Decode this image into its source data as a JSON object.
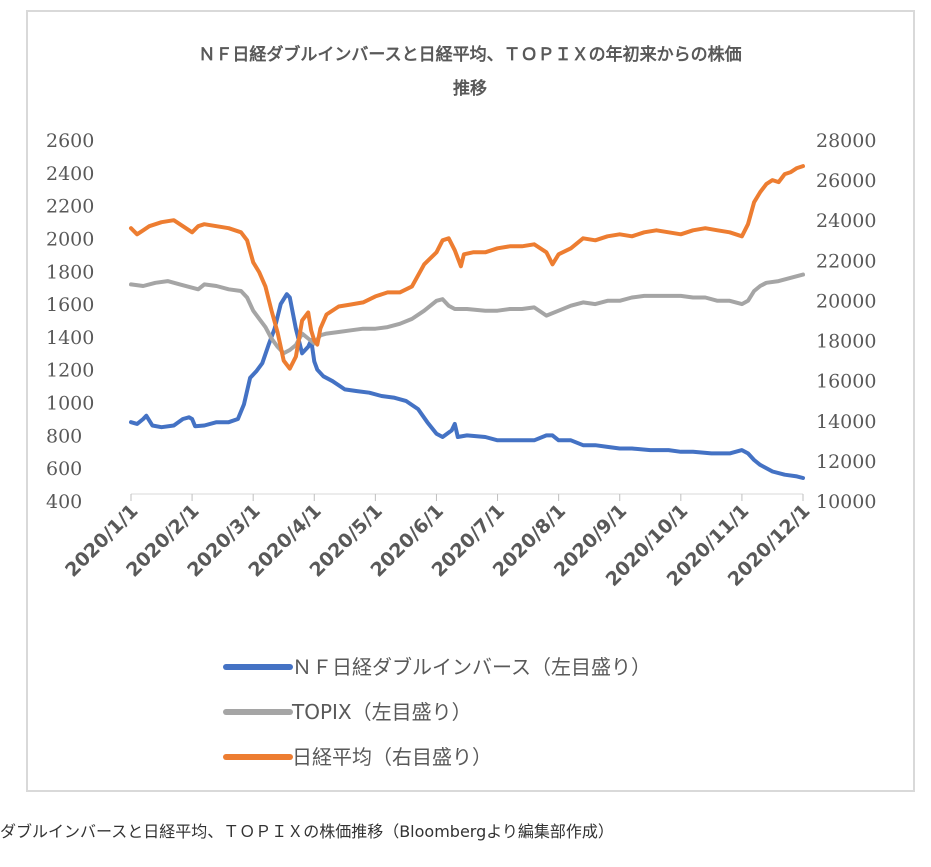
{
  "caption": "ダブルインバースと日経平均、ＴＯＰＩＸの株価推移（Bloombergより編集部作成）",
  "chart_data": {
    "type": "line",
    "title_lines": [
      "ＮＦ日経ダブルインバースと日経平均、ＴＯＰＩＸの年初来からの株価",
      "推移"
    ],
    "x_categories": [
      "2020/1/1",
      "2020/2/1",
      "2020/3/1",
      "2020/4/1",
      "2020/5/1",
      "2020/6/1",
      "2020/7/1",
      "2020/8/1",
      "2020/9/1",
      "2020/10/1",
      "2020/11/1",
      "2020/12/1"
    ],
    "y_left": {
      "min": 400,
      "max": 2600,
      "ticks": [
        "2600",
        "2400",
        "2200",
        "2000",
        "1800",
        "1600",
        "1400",
        "1200",
        "1000",
        "800",
        "600",
        "400"
      ]
    },
    "y_right": {
      "min": 10000,
      "max": 28000,
      "ticks": [
        "28000",
        "26000",
        "24000",
        "22000",
        "20000",
        "18000",
        "16000",
        "14000",
        "12000",
        "10000"
      ]
    },
    "grid": false,
    "legend_position": "bottom",
    "series": [
      {
        "name": "ＮＦ日経ダブルインバース（左目盛り）",
        "axis": "left",
        "color": "#4472c4",
        "points": [
          [
            0,
            880
          ],
          [
            0.1,
            870
          ],
          [
            0.2,
            900
          ],
          [
            0.25,
            920
          ],
          [
            0.35,
            860
          ],
          [
            0.5,
            850
          ],
          [
            0.7,
            860
          ],
          [
            0.85,
            900
          ],
          [
            0.95,
            910
          ],
          [
            1.0,
            900
          ],
          [
            1.05,
            855
          ],
          [
            1.2,
            860
          ],
          [
            1.4,
            880
          ],
          [
            1.6,
            880
          ],
          [
            1.75,
            900
          ],
          [
            1.85,
            990
          ],
          [
            1.95,
            1150
          ],
          [
            2.05,
            1190
          ],
          [
            2.15,
            1240
          ],
          [
            2.25,
            1350
          ],
          [
            2.35,
            1450
          ],
          [
            2.45,
            1600
          ],
          [
            2.55,
            1660
          ],
          [
            2.6,
            1640
          ],
          [
            2.7,
            1450
          ],
          [
            2.8,
            1300
          ],
          [
            2.9,
            1340
          ],
          [
            2.95,
            1380
          ],
          [
            3.0,
            1250
          ],
          [
            3.05,
            1200
          ],
          [
            3.15,
            1160
          ],
          [
            3.3,
            1130
          ],
          [
            3.5,
            1080
          ],
          [
            3.7,
            1070
          ],
          [
            3.9,
            1060
          ],
          [
            4.1,
            1040
          ],
          [
            4.3,
            1030
          ],
          [
            4.5,
            1010
          ],
          [
            4.7,
            960
          ],
          [
            4.85,
            880
          ],
          [
            5.0,
            810
          ],
          [
            5.1,
            790
          ],
          [
            5.25,
            830
          ],
          [
            5.3,
            870
          ],
          [
            5.35,
            790
          ],
          [
            5.5,
            800
          ],
          [
            5.8,
            790
          ],
          [
            6.0,
            770
          ],
          [
            6.2,
            770
          ],
          [
            6.4,
            770
          ],
          [
            6.6,
            770
          ],
          [
            6.8,
            800
          ],
          [
            6.9,
            800
          ],
          [
            7.0,
            770
          ],
          [
            7.2,
            770
          ],
          [
            7.4,
            740
          ],
          [
            7.6,
            740
          ],
          [
            7.8,
            730
          ],
          [
            8.0,
            720
          ],
          [
            8.2,
            720
          ],
          [
            8.5,
            710
          ],
          [
            8.8,
            710
          ],
          [
            9.0,
            700
          ],
          [
            9.2,
            700
          ],
          [
            9.5,
            690
          ],
          [
            9.8,
            690
          ],
          [
            10.0,
            710
          ],
          [
            10.1,
            690
          ],
          [
            10.2,
            650
          ],
          [
            10.3,
            620
          ],
          [
            10.5,
            580
          ],
          [
            10.7,
            560
          ],
          [
            10.9,
            550
          ],
          [
            11.0,
            540
          ]
        ]
      },
      {
        "name": "TOPIX（左目盛り）",
        "axis": "left",
        "color": "#a5a5a5",
        "points": [
          [
            0,
            1720
          ],
          [
            0.2,
            1710
          ],
          [
            0.4,
            1730
          ],
          [
            0.6,
            1740
          ],
          [
            0.8,
            1720
          ],
          [
            1.0,
            1700
          ],
          [
            1.1,
            1690
          ],
          [
            1.2,
            1720
          ],
          [
            1.4,
            1710
          ],
          [
            1.6,
            1690
          ],
          [
            1.8,
            1680
          ],
          [
            1.9,
            1640
          ],
          [
            2.0,
            1560
          ],
          [
            2.1,
            1510
          ],
          [
            2.2,
            1460
          ],
          [
            2.3,
            1390
          ],
          [
            2.4,
            1340
          ],
          [
            2.5,
            1300
          ],
          [
            2.6,
            1320
          ],
          [
            2.7,
            1350
          ],
          [
            2.8,
            1420
          ],
          [
            2.9,
            1390
          ],
          [
            3.0,
            1360
          ],
          [
            3.1,
            1410
          ],
          [
            3.2,
            1420
          ],
          [
            3.4,
            1430
          ],
          [
            3.6,
            1440
          ],
          [
            3.8,
            1450
          ],
          [
            4.0,
            1450
          ],
          [
            4.2,
            1460
          ],
          [
            4.4,
            1480
          ],
          [
            4.6,
            1510
          ],
          [
            4.8,
            1560
          ],
          [
            5.0,
            1620
          ],
          [
            5.1,
            1630
          ],
          [
            5.2,
            1590
          ],
          [
            5.3,
            1570
          ],
          [
            5.5,
            1570
          ],
          [
            5.8,
            1560
          ],
          [
            6.0,
            1560
          ],
          [
            6.2,
            1570
          ],
          [
            6.4,
            1570
          ],
          [
            6.6,
            1580
          ],
          [
            6.8,
            1530
          ],
          [
            7.0,
            1560
          ],
          [
            7.2,
            1590
          ],
          [
            7.4,
            1610
          ],
          [
            7.6,
            1600
          ],
          [
            7.8,
            1620
          ],
          [
            8.0,
            1620
          ],
          [
            8.2,
            1640
          ],
          [
            8.4,
            1650
          ],
          [
            8.6,
            1650
          ],
          [
            8.8,
            1650
          ],
          [
            9.0,
            1650
          ],
          [
            9.2,
            1640
          ],
          [
            9.4,
            1640
          ],
          [
            9.6,
            1620
          ],
          [
            9.8,
            1620
          ],
          [
            10.0,
            1600
          ],
          [
            10.1,
            1620
          ],
          [
            10.2,
            1680
          ],
          [
            10.3,
            1710
          ],
          [
            10.4,
            1730
          ],
          [
            10.6,
            1740
          ],
          [
            10.8,
            1760
          ],
          [
            11.0,
            1780
          ]
        ]
      },
      {
        "name": "日経平均（右目盛り）",
        "axis": "right",
        "color": "#ed7d31",
        "points": [
          [
            0,
            23600
          ],
          [
            0.1,
            23300
          ],
          [
            0.2,
            23500
          ],
          [
            0.3,
            23700
          ],
          [
            0.5,
            23900
          ],
          [
            0.7,
            24000
          ],
          [
            0.85,
            23700
          ],
          [
            1.0,
            23400
          ],
          [
            1.1,
            23700
          ],
          [
            1.2,
            23800
          ],
          [
            1.4,
            23700
          ],
          [
            1.6,
            23600
          ],
          [
            1.8,
            23400
          ],
          [
            1.9,
            23000
          ],
          [
            2.0,
            21900
          ],
          [
            2.1,
            21400
          ],
          [
            2.2,
            20700
          ],
          [
            2.3,
            19500
          ],
          [
            2.4,
            18400
          ],
          [
            2.5,
            17000
          ],
          [
            2.6,
            16600
          ],
          [
            2.7,
            17200
          ],
          [
            2.8,
            19000
          ],
          [
            2.9,
            19400
          ],
          [
            2.95,
            18500
          ],
          [
            3.0,
            18000
          ],
          [
            3.05,
            17800
          ],
          [
            3.1,
            18600
          ],
          [
            3.2,
            19300
          ],
          [
            3.4,
            19700
          ],
          [
            3.6,
            19800
          ],
          [
            3.8,
            19900
          ],
          [
            4.0,
            20200
          ],
          [
            4.2,
            20400
          ],
          [
            4.4,
            20400
          ],
          [
            4.6,
            20700
          ],
          [
            4.8,
            21800
          ],
          [
            5.0,
            22400
          ],
          [
            5.1,
            23000
          ],
          [
            5.2,
            23100
          ],
          [
            5.3,
            22500
          ],
          [
            5.4,
            21700
          ],
          [
            5.45,
            22300
          ],
          [
            5.6,
            22400
          ],
          [
            5.8,
            22400
          ],
          [
            6.0,
            22600
          ],
          [
            6.2,
            22700
          ],
          [
            6.4,
            22700
          ],
          [
            6.6,
            22800
          ],
          [
            6.8,
            22400
          ],
          [
            6.9,
            21800
          ],
          [
            7.0,
            22300
          ],
          [
            7.2,
            22600
          ],
          [
            7.4,
            23100
          ],
          [
            7.6,
            23000
          ],
          [
            7.8,
            23200
          ],
          [
            8.0,
            23300
          ],
          [
            8.2,
            23200
          ],
          [
            8.4,
            23400
          ],
          [
            8.6,
            23500
          ],
          [
            8.8,
            23400
          ],
          [
            9.0,
            23300
          ],
          [
            9.2,
            23500
          ],
          [
            9.4,
            23600
          ],
          [
            9.6,
            23500
          ],
          [
            9.8,
            23400
          ],
          [
            10.0,
            23200
          ],
          [
            10.1,
            23800
          ],
          [
            10.2,
            24900
          ],
          [
            10.3,
            25400
          ],
          [
            10.4,
            25800
          ],
          [
            10.5,
            26000
          ],
          [
            10.6,
            25900
          ],
          [
            10.7,
            26300
          ],
          [
            10.8,
            26400
          ],
          [
            10.9,
            26600
          ],
          [
            11.0,
            26700
          ]
        ]
      }
    ]
  }
}
